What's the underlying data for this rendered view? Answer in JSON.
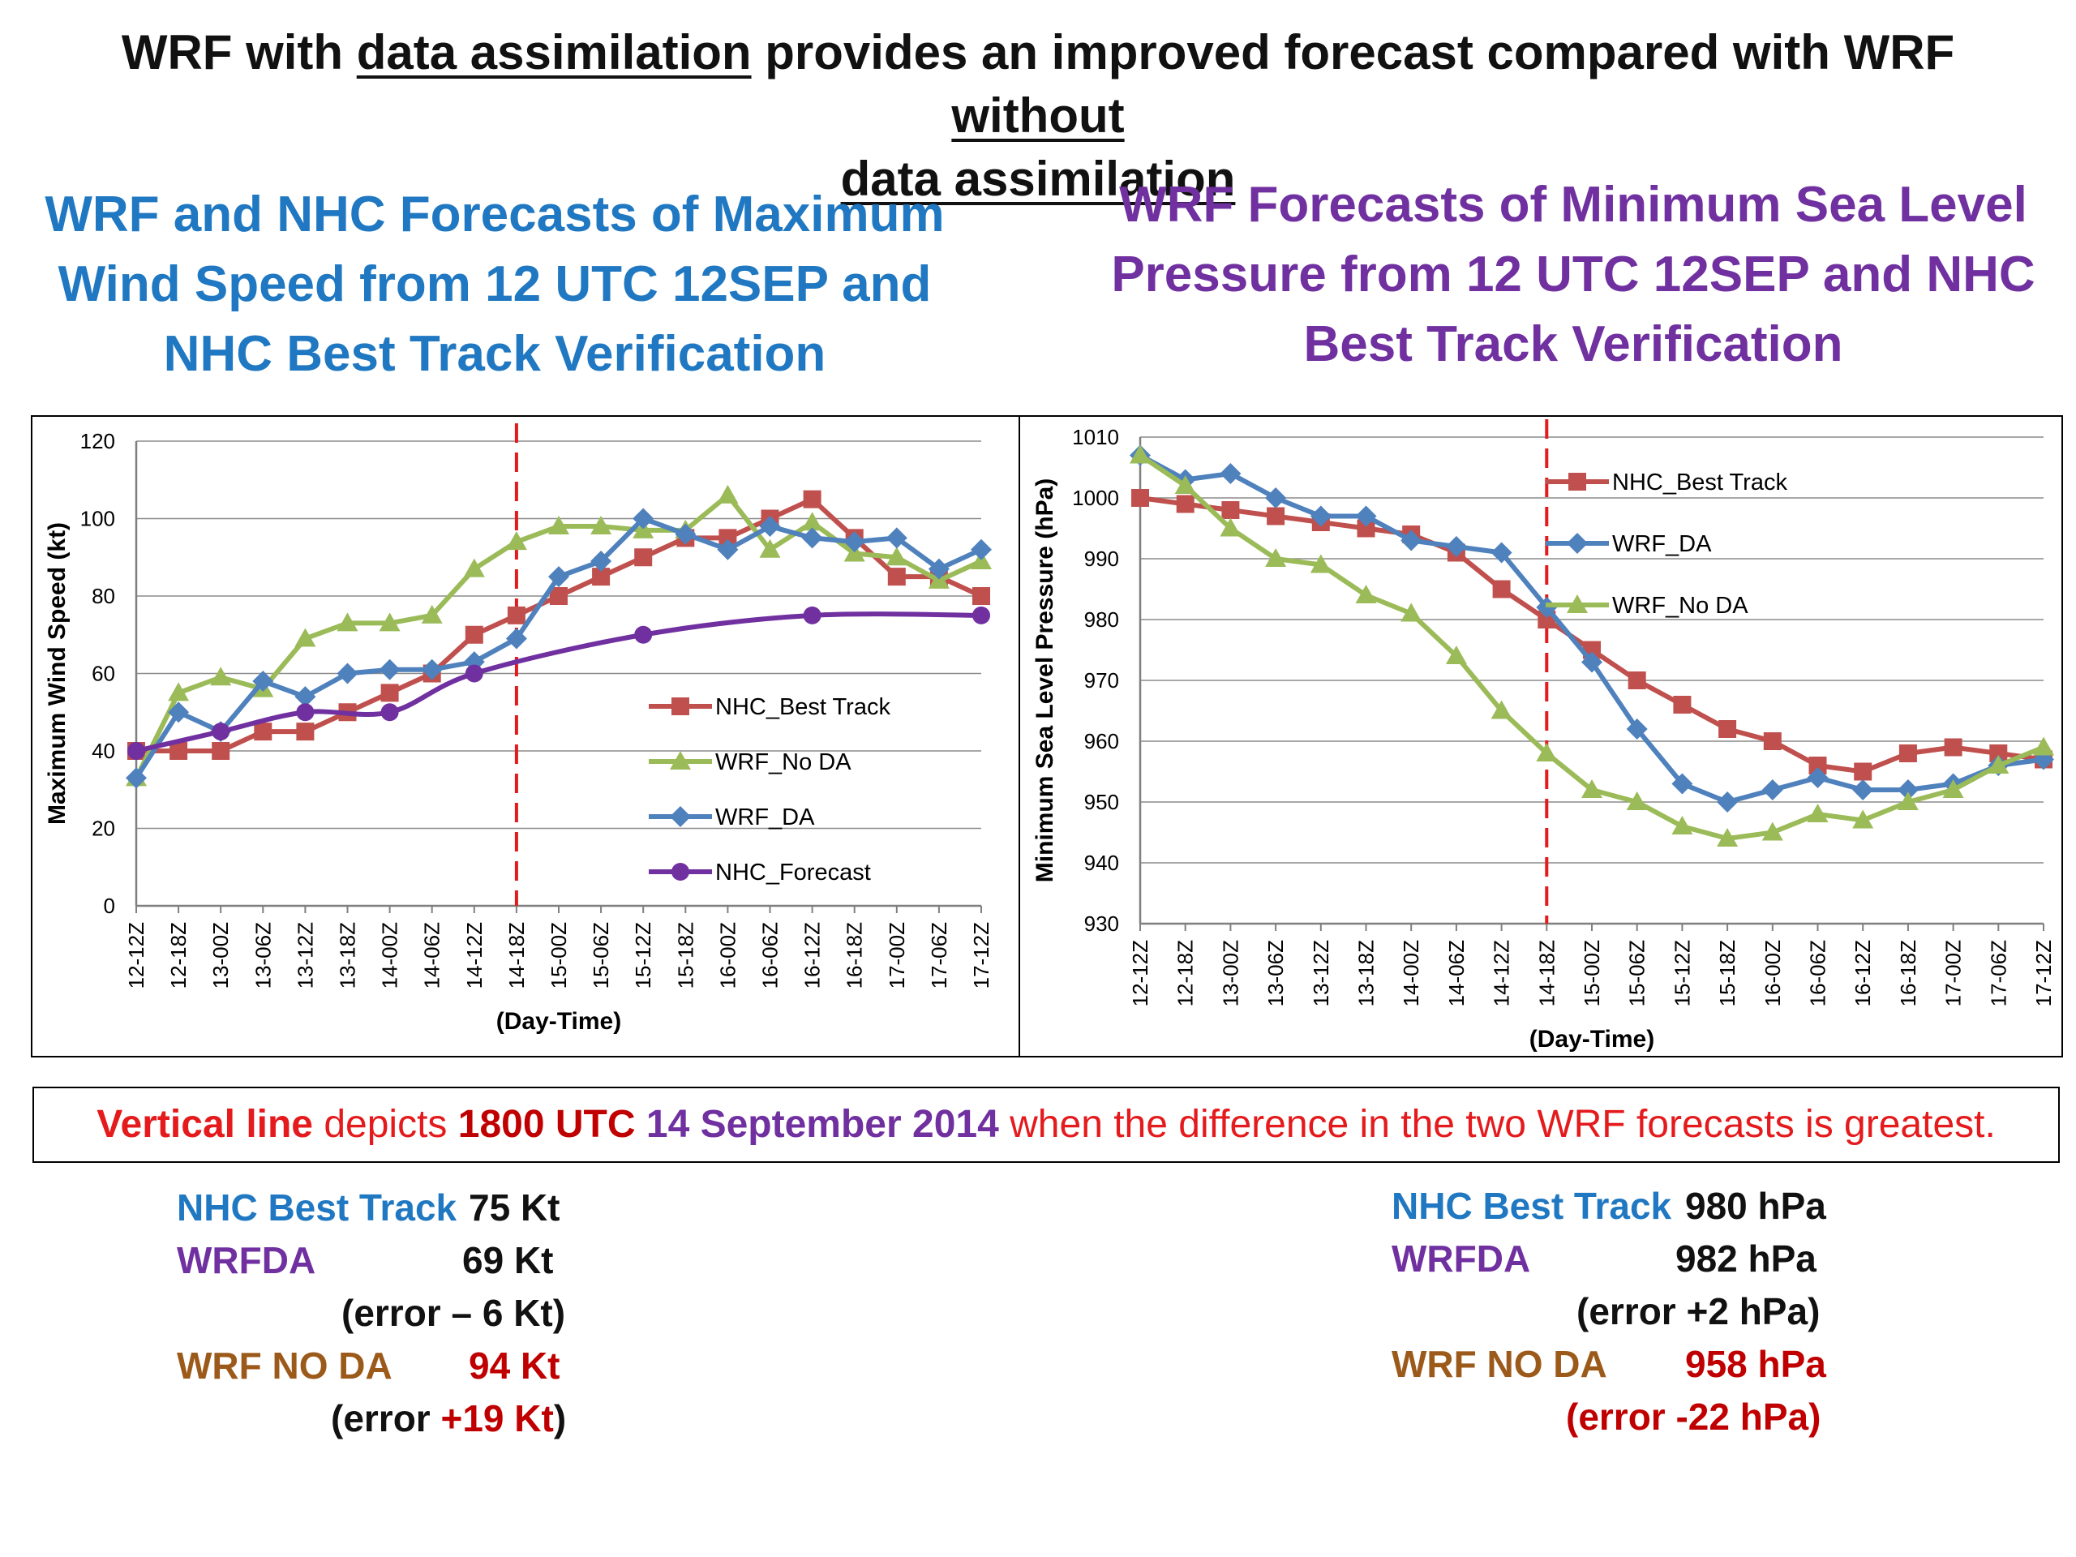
{
  "headline": {
    "part1": "WRF with ",
    "u1": "data assimilation",
    "part2": " provides an improved forecast compared with WRF ",
    "u2": "without",
    "u3": "data assimilation"
  },
  "subtitle_left": {
    "line1": "WRF and NHC Forecasts of Maximum",
    "line2": "Wind Speed from 12 UTC 12SEP and",
    "line3": "NHC Best Track Verification"
  },
  "subtitle_right": {
    "line1": "WRF Forecasts of Minimum Sea Level",
    "line2": "Pressure from 12 UTC 12SEP and NHC",
    "line3": "Best Track Verification"
  },
  "colors": {
    "best_track": "#c0504d",
    "wrf_da": "#4f81bd",
    "wrf_no_da": "#9bbb59",
    "nhc_forecast": "#7030a0",
    "vline": "#e41a1c"
  },
  "chart_data": [
    {
      "type": "line",
      "xlabel": "(Day-Time)",
      "ylabel": "Maximum Wind Speed (kt)",
      "ylim": [
        0,
        120
      ],
      "yticks": [
        0,
        20,
        40,
        60,
        80,
        100,
        120
      ],
      "grid": true,
      "legend_position": "right-middle",
      "vline_category": "14-18Z",
      "categories": [
        "12-12Z",
        "12-18Z",
        "13-00Z",
        "13-06Z",
        "13-12Z",
        "13-18Z",
        "14-00Z",
        "14-06Z",
        "14-12Z",
        "14-18Z",
        "15-00Z",
        "15-06Z",
        "15-12Z",
        "15-18Z",
        "16-00Z",
        "16-06Z",
        "16-12Z",
        "16-18Z",
        "17-00Z",
        "17-06Z",
        "17-12Z"
      ],
      "series": [
        {
          "name": "NHC_Best Track",
          "marker": "square",
          "values": [
            40,
            40,
            40,
            45,
            45,
            50,
            55,
            60,
            70,
            75,
            80,
            85,
            90,
            95,
            95,
            100,
            105,
            95,
            85,
            85,
            80
          ]
        },
        {
          "name": "WRF_No DA",
          "marker": "triangle",
          "values": [
            33,
            55,
            59,
            56,
            69,
            73,
            73,
            75,
            87,
            94,
            98,
            98,
            97,
            97,
            106,
            92,
            99,
            91,
            90,
            84,
            89
          ]
        },
        {
          "name": "WRF_DA",
          "marker": "diamond",
          "values": [
            33,
            50,
            45,
            58,
            54,
            60,
            61,
            61,
            63,
            69,
            85,
            89,
            100,
            96,
            92,
            98,
            95,
            94,
            95,
            87,
            92
          ]
        },
        {
          "name": "NHC_Forecast",
          "marker": "circle",
          "smooth": true,
          "values": [
            40,
            null,
            45,
            null,
            50,
            null,
            50,
            null,
            60,
            null,
            null,
            null,
            70,
            null,
            null,
            null,
            75,
            null,
            null,
            null,
            75
          ]
        }
      ]
    },
    {
      "type": "line",
      "xlabel": "(Day-Time)",
      "ylabel": "Minimum Sea Level Pressure (hPa)",
      "ylim": [
        930,
        1010
      ],
      "yticks": [
        930,
        940,
        950,
        960,
        970,
        980,
        990,
        1000,
        1010
      ],
      "grid": true,
      "legend_position": "top-middle",
      "vline_category": "14-18Z",
      "categories": [
        "12-12Z",
        "12-18Z",
        "13-00Z",
        "13-06Z",
        "13-12Z",
        "13-18Z",
        "14-00Z",
        "14-06Z",
        "14-12Z",
        "14-18Z",
        "15-00Z",
        "15-06Z",
        "15-12Z",
        "15-18Z",
        "16-00Z",
        "16-06Z",
        "16-12Z",
        "16-18Z",
        "17-00Z",
        "17-06Z",
        "17-12Z"
      ],
      "series": [
        {
          "name": "NHC_Best Track",
          "marker": "square",
          "values": [
            1000,
            999,
            998,
            997,
            996,
            995,
            994,
            991,
            985,
            980,
            975,
            970,
            966,
            962,
            960,
            956,
            955,
            958,
            959,
            958,
            957
          ]
        },
        {
          "name": "WRF_DA",
          "marker": "diamond",
          "values": [
            1007,
            1003,
            1004,
            1000,
            997,
            997,
            993,
            992,
            991,
            982,
            973,
            962,
            953,
            950,
            952,
            954,
            952,
            952,
            953,
            956,
            957
          ]
        },
        {
          "name": "WRF_No DA",
          "marker": "triangle",
          "values": [
            1007,
            1002,
            995,
            990,
            989,
            984,
            981,
            974,
            965,
            958,
            952,
            950,
            946,
            944,
            945,
            948,
            947,
            950,
            952,
            956,
            959
          ]
        }
      ]
    }
  ],
  "note": {
    "t1": "Vertical line",
    "t2": " depicts ",
    "t3": "1800 UTC",
    "t4": " 14 September 2014",
    "t5": " when the difference in the two WRF forecasts is greatest."
  },
  "summary_left": {
    "best_label": "NHC Best Track",
    "best_value": "75 Kt",
    "da_label": "WRFDA",
    "da_value": "69 Kt",
    "da_error": "(error – 6 Kt)",
    "noda_label": "WRF NO DA",
    "noda_value": "94 Kt",
    "noda_error_open": "(error ",
    "noda_error_value": "+19 Kt",
    "noda_error_close": ")"
  },
  "summary_right": {
    "best_label": "NHC Best Track",
    "best_value": "980 hPa",
    "da_label": "WRFDA",
    "da_value": "982 hPa",
    "da_error": "(error +2 hPa)",
    "noda_label": "WRF NO DA",
    "noda_value": "958 hPa",
    "noda_error_open": "(error ",
    "noda_error_value": "-22 hPa",
    "noda_error_close": ")"
  }
}
